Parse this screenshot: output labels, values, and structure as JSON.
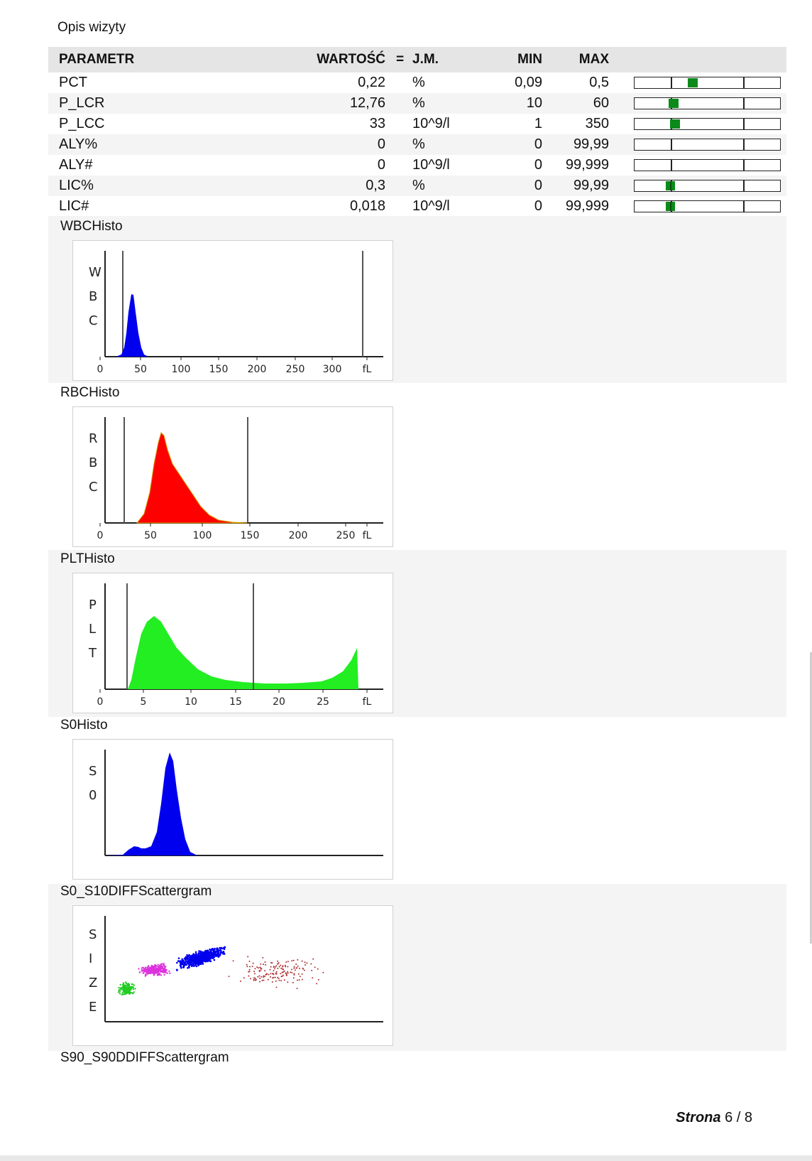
{
  "section_title": "Opis wizyty",
  "table": {
    "headers": {
      "param": "PARAMETR",
      "value": "WARTOŚĆ",
      "eq": "=",
      "unit": "J.M.",
      "min": "MIN",
      "max": "MAX"
    },
    "rows": [
      {
        "param": "PCT",
        "value": "0,22",
        "unit": "%",
        "min": "0,09",
        "max": "0,5",
        "level": 0.4
      },
      {
        "param": "P_LCR",
        "value": "12,76",
        "unit": "%",
        "min": "10",
        "max": "60",
        "level": 0.27
      },
      {
        "param": "P_LCC",
        "value": "33",
        "unit": "10^9/l",
        "min": "1",
        "max": "350",
        "level": 0.28
      },
      {
        "param": "ALY%",
        "value": "0",
        "unit": "%",
        "min": "0",
        "max": "99,99",
        "level": null
      },
      {
        "param": "ALY#",
        "value": "0",
        "unit": "10^9/l",
        "min": "0",
        "max": "99,999",
        "level": null
      },
      {
        "param": "LIC%",
        "value": "0,3",
        "unit": "%",
        "min": "0",
        "max": "99,99",
        "level": 0.25
      },
      {
        "param": "LIC#",
        "value": "0,018",
        "unit": "10^9/l",
        "min": "0",
        "max": "99,999",
        "level": 0.25
      }
    ]
  },
  "histograms": {
    "wbc": {
      "title": "WBCHisto",
      "axis_letters": [
        "W",
        "B",
        "C"
      ],
      "ticks": [
        "0",
        "50",
        "100",
        "150",
        "200",
        "250",
        "300",
        "fL"
      ],
      "color": "#0000ee"
    },
    "rbc": {
      "title": "RBCHisto",
      "axis_letters": [
        "R",
        "B",
        "C"
      ],
      "ticks": [
        "0",
        "50",
        "100",
        "150",
        "200",
        "250",
        "fL"
      ],
      "color": "#ff0000"
    },
    "plt": {
      "title": "PLTHisto",
      "axis_letters": [
        "P",
        "L",
        "T"
      ],
      "ticks": [
        "0",
        "5",
        "10",
        "15",
        "20",
        "25",
        "fL"
      ],
      "color": "#22ee22"
    },
    "s0": {
      "title": "S0Histo",
      "axis_letters": [
        "S",
        "0"
      ],
      "color": "#0000ee"
    },
    "scatter": {
      "title": "S0_S10DIFFScattergram",
      "axis_letters": [
        "S",
        "I",
        "Z",
        "E"
      ],
      "colors": [
        "#22cc22",
        "#dd33dd",
        "#0000ee",
        "#b03030"
      ]
    },
    "next_title": "S90_S90DDIFFScattergram"
  },
  "footer": {
    "strona_label": "Strona",
    "page": "6",
    "total": "/ 8"
  }
}
